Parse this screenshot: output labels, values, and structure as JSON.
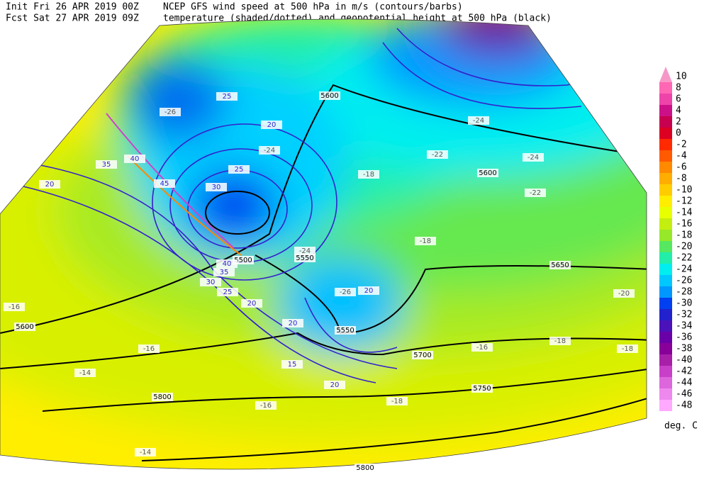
{
  "header": {
    "init": "Init  Fri 26 APR 2019 00Z",
    "forecast": "Fcst Sat 27 APR 2019 09Z",
    "title": "NCEP GFS wind speed at 500 hPa in m/s (contours/barbs)",
    "subtitle": "temperature (shaded/dotted) and geopotential height at 500 hPa (black)"
  },
  "colorbar": {
    "levels": [
      10,
      8,
      6,
      4,
      2,
      0,
      -2,
      -4,
      -6,
      -8,
      -10,
      -12,
      -14,
      -16,
      -18,
      -20,
      -22,
      -24,
      -26,
      -28,
      -30,
      -32,
      -34,
      -36,
      -38,
      -40,
      -42,
      -44,
      -46,
      -48
    ],
    "colors": [
      "#f598c8",
      "#ff66b3",
      "#ee44aa",
      "#cc1188",
      "#c80050",
      "#dd0022",
      "#ff2a00",
      "#ff5a00",
      "#ff8a00",
      "#ffad00",
      "#ffcc00",
      "#ffee00",
      "#e8ff00",
      "#c4ee10",
      "#96e828",
      "#55e860",
      "#22eeaa",
      "#00eef0",
      "#00c8ff",
      "#0098ff",
      "#0040f0",
      "#2222cc",
      "#4a12b8",
      "#6a00a8",
      "#880099",
      "#a820a8",
      "#c840c8",
      "#dd66dd",
      "#ee88ee",
      "#ffaaff"
    ],
    "unit": "deg. C"
  },
  "map": {
    "height_labels": [
      5600,
      5600,
      5550,
      5500,
      5550,
      5600,
      5800,
      5700,
      5650,
      5750,
      5800
    ],
    "temperature_labels": [
      -24,
      -26,
      -24,
      -22,
      -24,
      -22,
      -18,
      -18,
      -24,
      -26,
      -20,
      -16,
      -16,
      -14,
      -16,
      -18,
      -18,
      -14,
      -18,
      -16
    ],
    "wind_labels": [
      25,
      20,
      25,
      30,
      20,
      35,
      40,
      45,
      40,
      35,
      30,
      25,
      20,
      20,
      20,
      20,
      15
    ]
  }
}
